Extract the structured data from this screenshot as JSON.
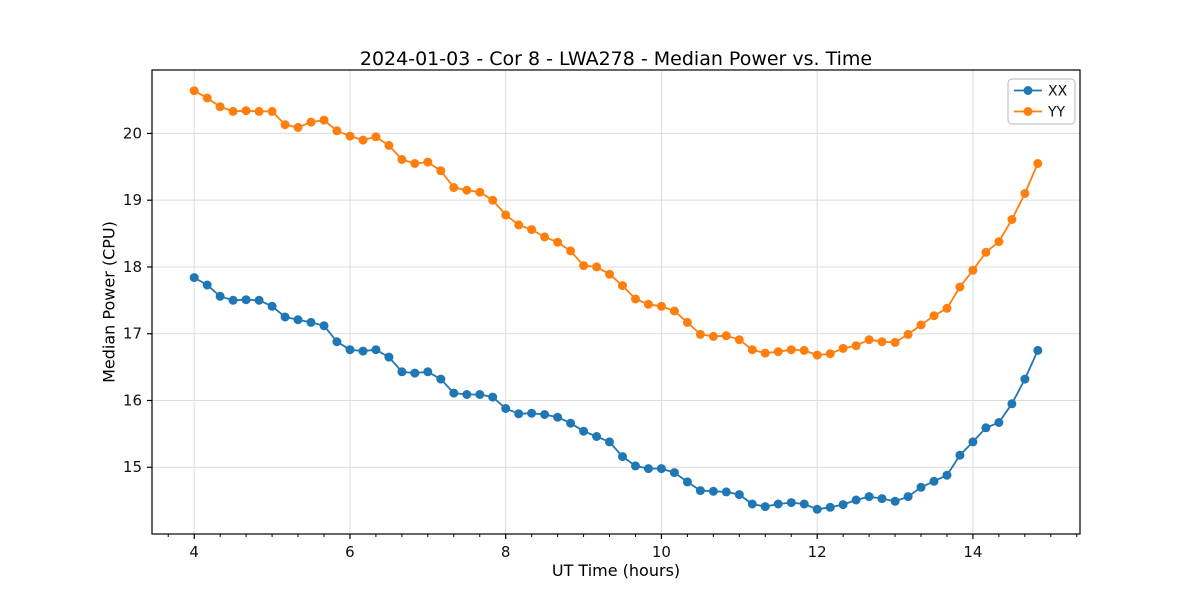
{
  "chart_data": {
    "type": "line",
    "title": "2024-01-03 - Cor 8 - LWA278 - Median Power vs. Time",
    "xlabel": "UT Time (hours)",
    "ylabel": "Median Power (CPU)",
    "xlim": [
      3.458,
      15.375
    ],
    "ylim": [
      14.0,
      20.95
    ],
    "xticks": [
      4,
      6,
      8,
      10,
      12,
      14
    ],
    "xtick_labels": [
      "4",
      "6",
      "8",
      "10",
      "12",
      "14"
    ],
    "yticks": [
      15,
      16,
      17,
      18,
      19,
      20
    ],
    "ytick_labels": [
      "15",
      "16",
      "17",
      "18",
      "19",
      "20"
    ],
    "x_minor_step": 0.3333,
    "grid": true,
    "legend_position": "upper right",
    "grid_color": "#dcdcdc",
    "spine_color": "#000000",
    "x": [
      4.0,
      4.167,
      4.333,
      4.5,
      4.667,
      4.833,
      5.0,
      5.167,
      5.333,
      5.5,
      5.667,
      5.833,
      6.0,
      6.167,
      6.333,
      6.5,
      6.667,
      6.833,
      7.0,
      7.167,
      7.333,
      7.5,
      7.667,
      7.833,
      8.0,
      8.167,
      8.333,
      8.5,
      8.667,
      8.833,
      9.0,
      9.167,
      9.333,
      9.5,
      9.667,
      9.833,
      10.0,
      10.167,
      10.333,
      10.5,
      10.667,
      10.833,
      11.0,
      11.167,
      11.333,
      11.5,
      11.667,
      11.833,
      12.0,
      12.167,
      12.333,
      12.5,
      12.667,
      12.833,
      13.0,
      13.167,
      13.333,
      13.5,
      13.667,
      13.833,
      14.0,
      14.167,
      14.333,
      14.5,
      14.667,
      14.833
    ],
    "series": [
      {
        "name": "XX",
        "color": "#1f77b4",
        "values": [
          17.84,
          17.73,
          17.56,
          17.5,
          17.51,
          17.5,
          17.41,
          17.25,
          17.21,
          17.17,
          17.12,
          16.88,
          16.76,
          16.74,
          16.76,
          16.65,
          16.43,
          16.41,
          16.43,
          16.32,
          16.11,
          16.09,
          16.09,
          16.05,
          15.88,
          15.8,
          15.81,
          15.79,
          15.75,
          15.66,
          15.54,
          15.46,
          15.38,
          15.16,
          15.02,
          14.98,
          14.98,
          14.92,
          14.78,
          14.65,
          14.64,
          14.63,
          14.59,
          14.45,
          14.41,
          14.45,
          14.47,
          14.45,
          14.37,
          14.4,
          14.44,
          14.51,
          14.56,
          14.53,
          14.49,
          14.56,
          14.7,
          14.79,
          14.88,
          15.18,
          15.38,
          15.59,
          15.67,
          15.95,
          16.32,
          16.75
        ]
      },
      {
        "name": "YY",
        "color": "#ff7f0e",
        "values": [
          20.64,
          20.53,
          20.4,
          20.33,
          20.34,
          20.33,
          20.33,
          20.13,
          20.09,
          20.17,
          20.2,
          20.04,
          19.96,
          19.9,
          19.95,
          19.82,
          19.61,
          19.55,
          19.57,
          19.44,
          19.19,
          19.15,
          19.12,
          19.0,
          18.78,
          18.63,
          18.56,
          18.45,
          18.37,
          18.24,
          18.02,
          18.0,
          17.89,
          17.72,
          17.52,
          17.44,
          17.41,
          17.34,
          17.17,
          16.99,
          16.96,
          16.97,
          16.91,
          16.76,
          16.71,
          16.73,
          16.76,
          16.75,
          16.68,
          16.7,
          16.78,
          16.82,
          16.91,
          16.88,
          16.87,
          16.99,
          17.13,
          17.27,
          17.38,
          17.7,
          17.95,
          18.22,
          18.38,
          18.71,
          19.1,
          19.55
        ]
      }
    ]
  }
}
